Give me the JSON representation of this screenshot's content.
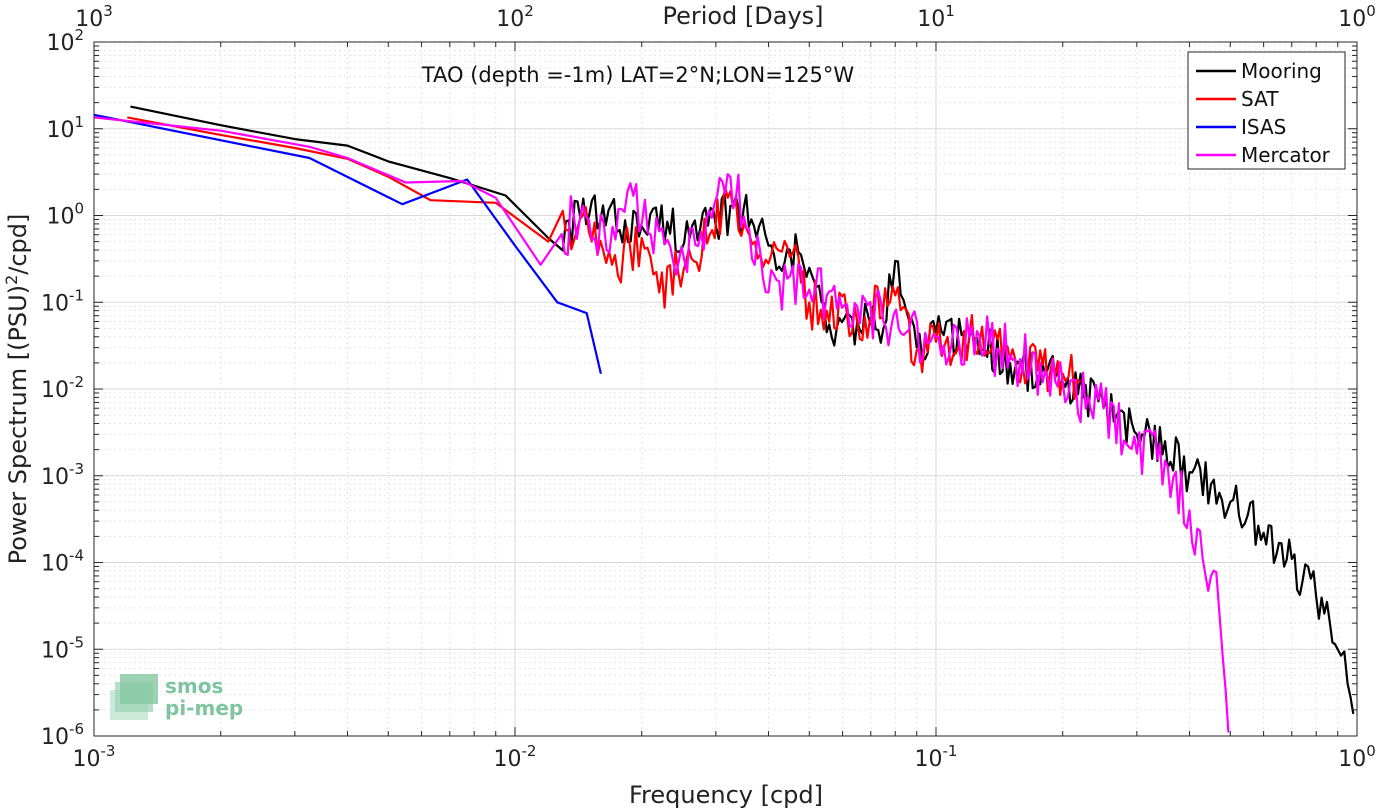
{
  "chart_data": {
    "type": "line",
    "title": "TAO (depth =-1m) LAT=2°N;LON=125°W",
    "xlabel": "Frequency [cpd]",
    "ylabel": "Power Spectrum [(PSU)^2/cpd]",
    "ylabel_parts": {
      "pre": "Power Spectrum [(PSU)",
      "sup": "2",
      "post": "/cpd]"
    },
    "top_xlabel": "Period [Days]",
    "xscale": "log",
    "yscale": "log",
    "xlim": [
      0.001,
      1
    ],
    "ylim": [
      1e-06,
      100
    ],
    "grid": true,
    "legend_position": "top-right",
    "x_ticks": [
      {
        "value": 0.001,
        "base": "10",
        "exp": "-3"
      },
      {
        "value": 0.01,
        "base": "10",
        "exp": "-2"
      },
      {
        "value": 0.1,
        "base": "10",
        "exp": "-1"
      },
      {
        "value": 1,
        "base": "10",
        "exp": "0"
      }
    ],
    "y_ticks": [
      {
        "value": 100,
        "base": "10",
        "exp": "2"
      },
      {
        "value": 10,
        "base": "10",
        "exp": "1"
      },
      {
        "value": 1,
        "base": "10",
        "exp": "0"
      },
      {
        "value": 0.1,
        "base": "10",
        "exp": "-1"
      },
      {
        "value": 0.01,
        "base": "10",
        "exp": "-2"
      },
      {
        "value": 0.001,
        "base": "10",
        "exp": "-3"
      },
      {
        "value": 0.0001,
        "base": "10",
        "exp": "-4"
      },
      {
        "value": 1e-05,
        "base": "10",
        "exp": "-5"
      },
      {
        "value": 1e-06,
        "base": "10",
        "exp": "-6"
      }
    ],
    "top_ticks": [
      {
        "frequency": 0.001,
        "base": "10",
        "exp": "3"
      },
      {
        "frequency": 0.01,
        "base": "10",
        "exp": "2"
      },
      {
        "frequency": 0.1,
        "base": "10",
        "exp": "1"
      },
      {
        "frequency": 1,
        "base": "10",
        "exp": "0"
      }
    ],
    "series": [
      {
        "name": "Mooring",
        "color": "#000000",
        "noise_amplitude": 0.45,
        "points": [
          [
            0.00122,
            18
          ],
          [
            0.002,
            11
          ],
          [
            0.003,
            7.6
          ],
          [
            0.004,
            6.4
          ],
          [
            0.005,
            4.2
          ],
          [
            0.007,
            2.7
          ],
          [
            0.0095,
            1.7
          ],
          [
            0.012,
            0.55
          ],
          [
            0.015,
            1.0
          ],
          [
            0.02,
            0.75
          ],
          [
            0.023,
            0.85
          ],
          [
            0.026,
            0.55
          ],
          [
            0.03,
            0.75
          ],
          [
            0.033,
            1.3
          ],
          [
            0.038,
            0.75
          ],
          [
            0.04,
            0.45
          ],
          [
            0.045,
            0.4
          ],
          [
            0.05,
            0.25
          ],
          [
            0.052,
            0.15
          ],
          [
            0.055,
            0.045
          ],
          [
            0.065,
            0.06
          ],
          [
            0.075,
            0.05
          ],
          [
            0.08,
            0.3
          ],
          [
            0.085,
            0.08
          ],
          [
            0.09,
            0.03
          ],
          [
            0.1,
            0.045
          ],
          [
            0.12,
            0.04
          ],
          [
            0.15,
            0.02
          ],
          [
            0.2,
            0.012
          ],
          [
            0.25,
            0.006
          ],
          [
            0.3,
            0.003
          ],
          [
            0.35,
            0.0025
          ],
          [
            0.4,
            0.0011
          ],
          [
            0.45,
            0.0008
          ],
          [
            0.5,
            0.0005
          ],
          [
            0.55,
            0.00035
          ],
          [
            0.6,
            0.00022
          ],
          [
            0.7,
            0.00011
          ],
          [
            0.8,
            4e-05
          ],
          [
            0.9,
            1e-05
          ],
          [
            0.95,
            4e-06
          ],
          [
            0.98,
            1.8e-06
          ]
        ]
      },
      {
        "name": "SAT",
        "color": "#ff0000",
        "noise_amplitude": 0.5,
        "points": [
          [
            0.0012,
            13.5
          ],
          [
            0.002,
            8.5
          ],
          [
            0.003,
            6.0
          ],
          [
            0.004,
            4.5
          ],
          [
            0.005,
            2.8
          ],
          [
            0.0063,
            1.5
          ],
          [
            0.009,
            1.4
          ],
          [
            0.012,
            0.5
          ],
          [
            0.0145,
            1.0
          ],
          [
            0.017,
            0.27
          ],
          [
            0.02,
            0.55
          ],
          [
            0.022,
            0.13
          ],
          [
            0.0255,
            0.3
          ],
          [
            0.029,
            0.6
          ],
          [
            0.032,
            1.6
          ],
          [
            0.035,
            0.8
          ],
          [
            0.04,
            0.28
          ],
          [
            0.045,
            0.33
          ],
          [
            0.05,
            0.1
          ],
          [
            0.055,
            0.08
          ],
          [
            0.065,
            0.06
          ],
          [
            0.08,
            0.12
          ],
          [
            0.09,
            0.028
          ],
          [
            0.1,
            0.035
          ],
          [
            0.11,
            0.025
          ],
          [
            0.12,
            0.04
          ],
          [
            0.15,
            0.022
          ],
          [
            0.2,
            0.015
          ],
          [
            0.22,
            0.012
          ]
        ]
      },
      {
        "name": "ISAS",
        "color": "#0000ff",
        "noise_amplitude": 0,
        "points": [
          [
            0.001,
            14.5
          ],
          [
            0.00325,
            4.6
          ],
          [
            0.0054,
            1.35
          ],
          [
            0.0077,
            2.6
          ],
          [
            0.01,
            0.45
          ],
          [
            0.0126,
            0.1
          ],
          [
            0.0148,
            0.075
          ],
          [
            0.016,
            0.015
          ]
        ]
      },
      {
        "name": "Mercator",
        "color": "#ff00ff",
        "noise_amplitude": 0.55,
        "points": [
          [
            0.001,
            13.5
          ],
          [
            0.002,
            9.5
          ],
          [
            0.00325,
            6.2
          ],
          [
            0.004,
            4.6
          ],
          [
            0.0055,
            2.4
          ],
          [
            0.0075,
            2.5
          ],
          [
            0.009,
            1.6
          ],
          [
            0.0115,
            0.27
          ],
          [
            0.0145,
            1.3
          ],
          [
            0.0165,
            0.4
          ],
          [
            0.0185,
            1.9
          ],
          [
            0.021,
            0.6
          ],
          [
            0.0245,
            0.3
          ],
          [
            0.0285,
            0.9
          ],
          [
            0.032,
            3.0
          ],
          [
            0.036,
            0.7
          ],
          [
            0.04,
            0.13
          ],
          [
            0.045,
            0.2
          ],
          [
            0.05,
            0.14
          ],
          [
            0.055,
            0.12
          ],
          [
            0.065,
            0.09
          ],
          [
            0.075,
            0.06
          ],
          [
            0.085,
            0.045
          ],
          [
            0.1,
            0.04
          ],
          [
            0.12,
            0.04
          ],
          [
            0.15,
            0.025
          ],
          [
            0.2,
            0.012
          ],
          [
            0.25,
            0.006
          ],
          [
            0.3,
            0.0018
          ],
          [
            0.35,
            0.0015
          ],
          [
            0.4,
            0.0004
          ],
          [
            0.43,
            0.00011
          ],
          [
            0.45,
            7e-05
          ],
          [
            0.47,
            3e-05
          ],
          [
            0.48,
            8e-06
          ],
          [
            0.495,
            1.1e-06
          ]
        ]
      }
    ]
  },
  "logo": {
    "line1": "smos",
    "line2": "pi-mep"
  }
}
